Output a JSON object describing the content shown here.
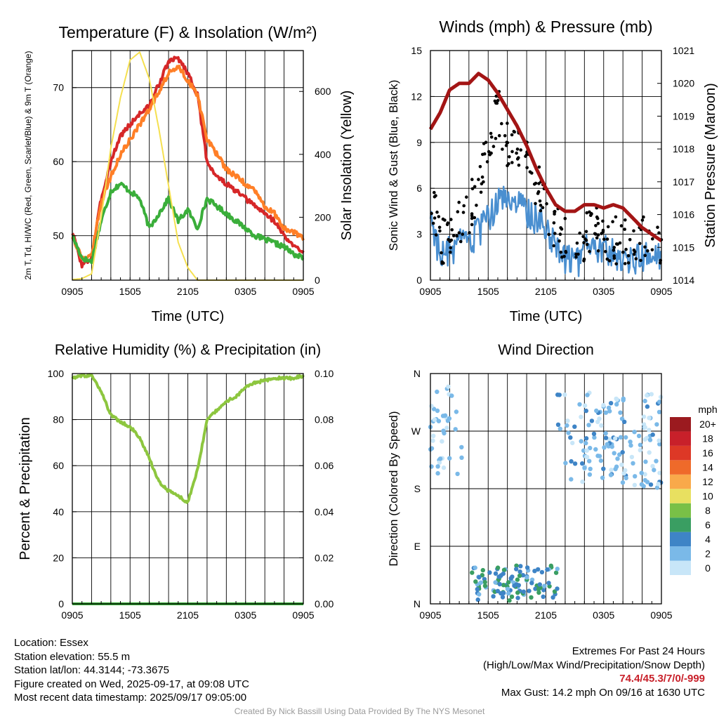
{
  "chart_data": [
    {
      "type": "line",
      "title": "Temperature (F) & Insolation (W/m²)",
      "xlabel": "Time (UTC)",
      "ylabel": "2m T, Td, HI/WC (Red, Green, Scarlet/Blue) & 9m T (Orange)",
      "ylabel_right": "Solar Insolation (Yellow)",
      "x_ticks": [
        "0905",
        "1505",
        "2105",
        "0305",
        "0905"
      ],
      "ylim": [
        44,
        75
      ],
      "y_ticks": [
        50,
        60,
        70
      ],
      "ylim_right": [
        0,
        730
      ],
      "y_ticks_right": [
        0,
        200,
        400,
        600
      ],
      "grid": true,
      "x_hours": [
        0,
        1,
        2,
        3,
        4,
        5,
        6,
        7,
        8,
        9,
        10,
        11,
        12,
        13,
        14,
        15,
        16,
        17,
        18,
        19,
        20,
        21,
        22,
        23,
        24
      ],
      "series": [
        {
          "color": "#d62728",
          "axis": "left",
          "values": [
            50.5,
            46,
            47,
            55,
            60,
            63.5,
            65,
            66.5,
            67.5,
            70.5,
            73.5,
            74,
            72,
            69,
            60,
            58,
            57,
            56,
            55,
            54,
            53,
            52,
            50,
            48.5,
            48
          ]
        },
        {
          "color": "#ff7f27",
          "axis": "left",
          "values": [
            50,
            47,
            47.5,
            54.5,
            58,
            61,
            63,
            65,
            67,
            69.5,
            72,
            72.8,
            71,
            69,
            63,
            61,
            59,
            58,
            57,
            56,
            54,
            53,
            51,
            50.5,
            49.5
          ]
        },
        {
          "color": "#3aae3a",
          "axis": "left",
          "values": [
            50,
            47,
            46.5,
            52,
            56,
            57,
            56,
            55,
            51,
            53,
            55,
            52,
            53.5,
            51,
            55,
            54,
            53,
            52,
            51,
            50,
            49.5,
            49,
            48.5,
            47.5,
            47
          ]
        },
        {
          "color": "#f5e050",
          "axis": "right",
          "values": [
            2,
            5,
            20,
            200,
            420,
            580,
            700,
            725,
            640,
            480,
            300,
            120,
            40,
            0,
            0,
            0,
            0,
            0,
            0,
            0,
            0,
            0,
            0,
            0,
            0
          ]
        }
      ]
    },
    {
      "type": "line",
      "title": "Winds (mph) & Pressure (mb)",
      "xlabel": "Time (UTC)",
      "ylabel": "Sonic Wind & Gust (Blue, Black)",
      "ylabel_right": "Station Pressure (Maroon)",
      "x_ticks": [
        "0905",
        "1505",
        "2105",
        "0305",
        "0905"
      ],
      "ylim": [
        0,
        15
      ],
      "y_ticks": [
        0,
        3,
        6,
        9,
        12,
        15
      ],
      "ylim_right": [
        1014,
        1021
      ],
      "y_ticks_right": [
        1014,
        1015,
        1016,
        1017,
        1018,
        1019,
        1020,
        1021
      ],
      "grid": true,
      "x_hours": [
        0,
        1,
        2,
        3,
        4,
        5,
        6,
        7,
        8,
        9,
        10,
        11,
        12,
        13,
        14,
        15,
        16,
        17,
        18,
        19,
        20,
        21,
        22,
        23,
        24
      ],
      "series": [
        {
          "color": "#4a8fd0",
          "axis": "left",
          "style": "line",
          "values": [
            4.5,
            1.5,
            1.8,
            2.2,
            2.5,
            3,
            4,
            5,
            5.5,
            5,
            4.5,
            4,
            3.5,
            2.5,
            1.5,
            1,
            1.8,
            2.2,
            2,
            1.8,
            1.5,
            1.3,
            1.5,
            1.3,
            1.6
          ]
        },
        {
          "color": "#000000",
          "axis": "left",
          "style": "points",
          "values": [
            6,
            2.5,
            3,
            3.5,
            4.5,
            6.5,
            8.5,
            11,
            9,
            8.5,
            7.5,
            6.5,
            5,
            3.5,
            2.5,
            2.5,
            2.7,
            3.2,
            3,
            2.7,
            2.5,
            2.2,
            2.6,
            2.1,
            2.5
          ]
        },
        {
          "color": "#a31515",
          "axis": "right",
          "style": "line",
          "values": [
            1018.6,
            1019.1,
            1019.8,
            1020.0,
            1020.0,
            1020.3,
            1020.1,
            1019.7,
            1019.2,
            1018.7,
            1018.1,
            1017.4,
            1016.8,
            1016.3,
            1016.1,
            1016.1,
            1016.3,
            1016.3,
            1016.2,
            1016.3,
            1016.2,
            1015.9,
            1015.6,
            1015.4,
            1015.2
          ]
        }
      ]
    },
    {
      "type": "line",
      "title": "Relative Humidity (%) & Precipitation (in)",
      "xlabel": "",
      "ylabel": "Percent & Precipitation",
      "x_ticks": [
        "0905",
        "1505",
        "2105",
        "0305",
        "0905"
      ],
      "ylim": [
        0,
        100
      ],
      "y_ticks": [
        0,
        20,
        40,
        60,
        80,
        100
      ],
      "ylim_right": [
        0,
        0.1
      ],
      "y_ticks_right": [
        "0.00",
        "0.02",
        "0.04",
        "0.06",
        "0.08",
        "0.10"
      ],
      "grid": true,
      "x_hours": [
        0,
        1,
        2,
        3,
        4,
        5,
        6,
        7,
        8,
        9,
        10,
        11,
        12,
        13,
        14,
        15,
        16,
        17,
        18,
        19,
        20,
        21,
        22,
        23,
        24
      ],
      "series": [
        {
          "color": "#8dc63f",
          "axis": "left",
          "values": [
            98,
            99,
            99,
            92,
            82,
            79,
            77,
            72,
            63,
            53,
            49,
            47,
            44,
            58,
            80,
            84,
            88,
            90,
            94,
            96,
            97,
            98,
            98,
            98,
            99
          ]
        },
        {
          "color": "#3aae3a",
          "axis": "right",
          "values": [
            0,
            0,
            0,
            0,
            0,
            0,
            0,
            0,
            0,
            0,
            0,
            0,
            0,
            0,
            0,
            0,
            0,
            0,
            0,
            0,
            0,
            0,
            0,
            0,
            0
          ]
        }
      ]
    },
    {
      "type": "scatter",
      "title": "Wind Direction",
      "xlabel": "",
      "ylabel": "Direction (Colored By Speed)",
      "x_ticks": [
        "0905",
        "1505",
        "2105",
        "0305",
        "0905"
      ],
      "y_ticks": [
        "N",
        "E",
        "S",
        "W",
        "N"
      ],
      "ylim": [
        0,
        360
      ],
      "grid": true,
      "colorbar": {
        "unit": "mph",
        "labels": [
          "0",
          "2",
          "4",
          "6",
          "8",
          "10",
          "12",
          "14",
          "16",
          "18",
          "20+"
        ],
        "colors": [
          "#c8e6f8",
          "#7ab9e8",
          "#3e84c6",
          "#3a9e62",
          "#79c047",
          "#e8e060",
          "#f9a94a",
          "#ef6a2a",
          "#dd3826",
          "#c8202a",
          "#9b1a1f"
        ]
      },
      "clusters": [
        {
          "hours": [
            0,
            3.3
          ],
          "dir": [
            200,
            340
          ],
          "speed": [
            0,
            3
          ]
        },
        {
          "hours": [
            4.3,
            13.2
          ],
          "dir": [
            5,
            60
          ],
          "speed": [
            2,
            7
          ]
        },
        {
          "hours": [
            13.2,
            24
          ],
          "dir": [
            180,
            330
          ],
          "speed": [
            0,
            4
          ]
        }
      ]
    }
  ],
  "info": {
    "location": "Location: Essex",
    "elevation": "Station elevation: 55.5 m",
    "latlon": "Station lat/lon: 44.3144; -73.3675",
    "created": "Figure created on Wed, 2025-09-17, at 09:08 UTC",
    "recent": "Most recent data timestamp: 2025/09/17 09:05:00"
  },
  "extremes": {
    "title": "Extremes For Past 24 Hours",
    "subtitle": "(High/Low/Max Wind/Precipitation/Snow Depth)",
    "values": "74.4/45.3/7/0/-999",
    "gust": "Max Gust: 14.2 mph On 09/16 at 1630 UTC"
  },
  "credit": "Created By Nick Bassill Using Data Provided By The NYS Mesonet"
}
